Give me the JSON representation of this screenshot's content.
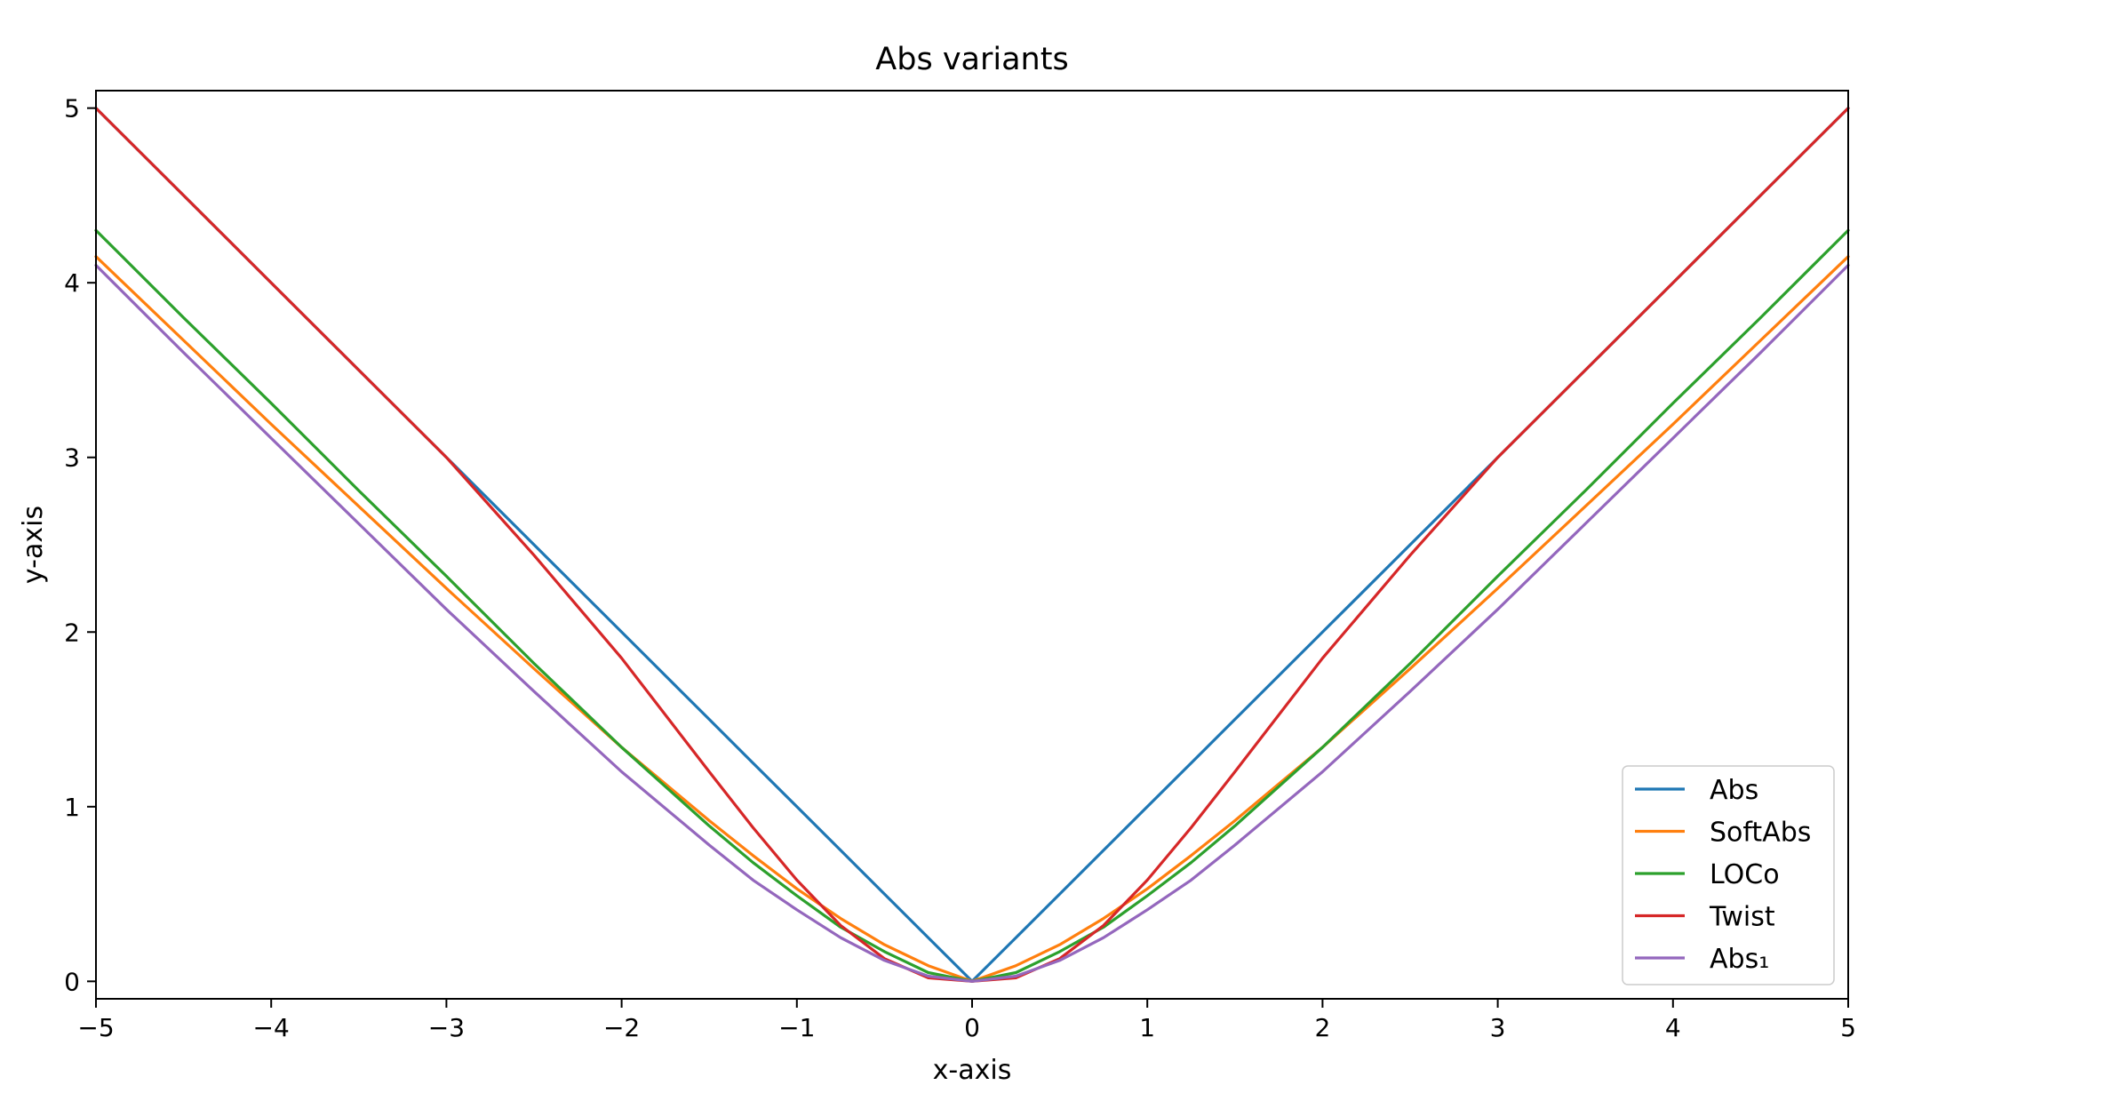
{
  "chart_data": {
    "type": "line",
    "title": "Abs variants",
    "xlabel": "x-axis",
    "ylabel": "y-axis",
    "xlim": [
      -5,
      5
    ],
    "ylim": [
      -0.1,
      5.1
    ],
    "xticks": [
      -5,
      -4,
      -3,
      -2,
      -1,
      0,
      1,
      2,
      3,
      4,
      5
    ],
    "xtick_labels": [
      "−5",
      "−4",
      "−3",
      "−2",
      "−1",
      "0",
      "1",
      "2",
      "3",
      "4",
      "5"
    ],
    "yticks": [
      0,
      1,
      2,
      3,
      4,
      5
    ],
    "ytick_labels": [
      "0",
      "1",
      "2",
      "3",
      "4",
      "5"
    ],
    "grid": false,
    "legend_position": "lower-right",
    "x": [
      -5,
      -4.5,
      -4,
      -3.5,
      -3,
      -2.5,
      -2,
      -1.5,
      -1.25,
      -1,
      -0.75,
      -0.5,
      -0.25,
      0,
      0.25,
      0.5,
      0.75,
      1,
      1.25,
      1.5,
      2,
      2.5,
      3,
      3.5,
      4,
      4.5,
      5
    ],
    "series": [
      {
        "name": "Abs",
        "color": "#1f77b4",
        "values": [
          5,
          4.5,
          4,
          3.5,
          3,
          2.5,
          2,
          1.5,
          1.25,
          1,
          0.75,
          0.5,
          0.25,
          0,
          0.25,
          0.5,
          0.75,
          1,
          1.25,
          1.5,
          2,
          2.5,
          3,
          3.5,
          4,
          4.5,
          5
        ]
      },
      {
        "name": "SoftAbs",
        "color": "#ff7f0e",
        "values": [
          4.15,
          3.67,
          3.19,
          2.72,
          2.25,
          1.79,
          1.34,
          0.92,
          0.72,
          0.53,
          0.36,
          0.21,
          0.09,
          0,
          0.09,
          0.21,
          0.36,
          0.53,
          0.72,
          0.92,
          1.34,
          1.79,
          2.25,
          2.72,
          3.19,
          3.67,
          4.15
        ]
      },
      {
        "name": "LOCo",
        "color": "#2ca02c",
        "values": [
          4.3,
          3.8,
          3.31,
          2.81,
          2.32,
          1.82,
          1.34,
          0.89,
          0.68,
          0.49,
          0.31,
          0.17,
          0.05,
          0,
          0.05,
          0.17,
          0.31,
          0.49,
          0.68,
          0.89,
          1.34,
          1.82,
          2.32,
          2.81,
          3.31,
          3.8,
          4.3
        ]
      },
      {
        "name": "Twist",
        "color": "#d62728",
        "values": [
          5,
          4.5,
          4,
          3.5,
          3.0,
          2.44,
          1.85,
          1.2,
          0.88,
          0.58,
          0.32,
          0.13,
          0.02,
          0,
          0.02,
          0.13,
          0.32,
          0.58,
          0.88,
          1.2,
          1.85,
          2.44,
          3.0,
          3.5,
          4,
          4.5,
          5
        ]
      },
      {
        "name": "Abs₁",
        "color": "#9467bd",
        "values": [
          4.1,
          3.6,
          3.11,
          2.62,
          2.13,
          1.66,
          1.2,
          0.78,
          0.58,
          0.41,
          0.25,
          0.12,
          0.03,
          0,
          0.03,
          0.12,
          0.25,
          0.41,
          0.58,
          0.78,
          1.2,
          1.66,
          2.13,
          2.62,
          3.11,
          3.6,
          4.1
        ]
      }
    ]
  }
}
